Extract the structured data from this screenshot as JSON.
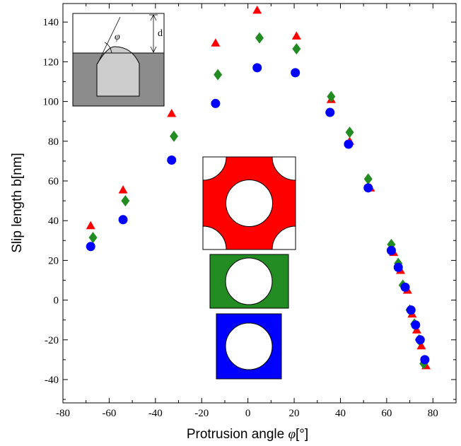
{
  "chart_data": {
    "type": "scatter",
    "title": "",
    "xlabel": "Protrusion angle",
    "xlabel_symbol": "φ",
    "xlabel_unit": "[°]",
    "ylabel": "Slip length b[nm]",
    "xlim": [
      -80,
      90
    ],
    "ylim": [
      -50,
      150
    ],
    "xticks": [
      "-80",
      "-60",
      "-40",
      "-20",
      "0",
      "20",
      "40",
      "60",
      "80"
    ],
    "yticks": [
      "-40",
      "-20",
      "0",
      "20",
      "40",
      "60",
      "80",
      "100",
      "120",
      "140"
    ],
    "grid": false,
    "legend": "pictorial insets (red, green, blue unit cells)",
    "inset_labels": {
      "angle": "φ",
      "depth": "d"
    },
    "colors": {
      "red": "#ff0000",
      "green": "#228b22",
      "blue": "#0000ff",
      "dark_gray": "#8c8c8c",
      "light_gray": "#cccccc"
    },
    "series": [
      {
        "color": "#ff0000",
        "marker": "triangle",
        "points": [
          [
            -68,
            37.5
          ],
          [
            -54,
            55.5
          ],
          [
            -33,
            94
          ],
          [
            -14,
            129.5
          ],
          [
            4,
            146
          ],
          [
            21,
            133
          ],
          [
            36,
            101
          ],
          [
            44,
            80
          ],
          [
            53,
            56.5
          ],
          [
            63,
            24
          ],
          [
            66,
            15
          ],
          [
            69,
            5
          ],
          [
            71,
            -7
          ],
          [
            73,
            -15
          ],
          [
            75,
            -23
          ],
          [
            77,
            -33
          ]
        ]
      },
      {
        "color": "#228b22",
        "marker": "diamond",
        "points": [
          [
            -67,
            31.5
          ],
          [
            -53,
            50
          ],
          [
            -32,
            82.5
          ],
          [
            -13,
            113.5
          ],
          [
            5,
            132
          ],
          [
            21,
            126.5
          ],
          [
            36,
            102.5
          ],
          [
            44,
            84.5
          ],
          [
            52,
            61
          ],
          [
            62,
            28
          ],
          [
            65,
            18.5
          ],
          [
            67,
            7.5
          ],
          [
            70,
            -5
          ],
          [
            72,
            -12
          ],
          [
            74,
            -20
          ],
          [
            76,
            -32
          ]
        ]
      },
      {
        "color": "#0000ff",
        "marker": "circle",
        "points": [
          [
            -68,
            27
          ],
          [
            -54,
            40.5
          ],
          [
            -33,
            70.5
          ],
          [
            -14,
            99
          ],
          [
            4,
            117
          ],
          [
            20.5,
            114.5
          ],
          [
            35.5,
            94.5
          ],
          [
            43.5,
            78.5
          ],
          [
            52,
            56.5
          ],
          [
            62,
            25
          ],
          [
            65,
            16.5
          ],
          [
            68,
            6.5
          ],
          [
            70.5,
            -5
          ],
          [
            72.5,
            -12.5
          ],
          [
            74.5,
            -20
          ],
          [
            76.5,
            -30
          ]
        ]
      }
    ]
  }
}
